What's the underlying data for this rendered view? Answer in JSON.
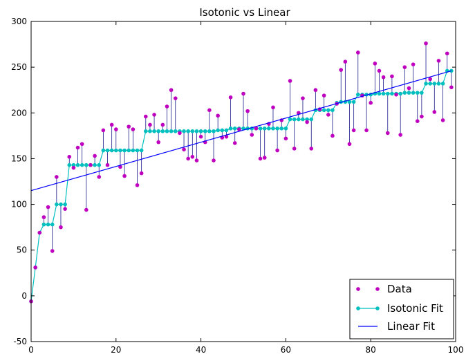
{
  "chart_data": {
    "type": "scatter",
    "title": "Isotonic vs Linear",
    "xlabel": "",
    "ylabel": "",
    "xlim": [
      0,
      100
    ],
    "ylim": [
      -50,
      300
    ],
    "xticks": [
      "0",
      "20",
      "40",
      "60",
      "80",
      "100"
    ],
    "yticks": [
      "-50",
      "0",
      "50",
      "100",
      "150",
      "200",
      "250",
      "300"
    ],
    "grid": false,
    "legend_position": "bottom-right",
    "x": [
      0,
      1,
      2,
      3,
      4,
      5,
      6,
      7,
      8,
      9,
      10,
      11,
      12,
      13,
      14,
      15,
      16,
      17,
      18,
      19,
      20,
      21,
      22,
      23,
      24,
      25,
      26,
      27,
      28,
      29,
      30,
      31,
      32,
      33,
      34,
      35,
      36,
      37,
      38,
      39,
      40,
      41,
      42,
      43,
      44,
      45,
      46,
      47,
      48,
      49,
      50,
      51,
      52,
      53,
      54,
      55,
      56,
      57,
      58,
      59,
      60,
      61,
      62,
      63,
      64,
      65,
      66,
      67,
      68,
      69,
      70,
      71,
      72,
      73,
      74,
      75,
      76,
      77,
      78,
      79,
      80,
      81,
      82,
      83,
      84,
      85,
      86,
      87,
      88,
      89,
      90,
      91,
      92,
      93,
      94,
      95,
      96,
      97,
      98,
      99
    ],
    "series": [
      {
        "name": "Data",
        "color": "#bf00bf",
        "values": [
          -6,
          31,
          69,
          86,
          97,
          49,
          130,
          75,
          95,
          152,
          140,
          162,
          166,
          94,
          143,
          153,
          130,
          181,
          143,
          187,
          182,
          141,
          131,
          185,
          182,
          121,
          134,
          196,
          187,
          198,
          168,
          187,
          207,
          225,
          216,
          178,
          160,
          150,
          152,
          148,
          174,
          168,
          203,
          148,
          197,
          173,
          174,
          217,
          167,
          182,
          221,
          202,
          176,
          183,
          150,
          151,
          188,
          206,
          159,
          192,
          172,
          235,
          161,
          200,
          216,
          190,
          161,
          225,
          204,
          219,
          198,
          175,
          210,
          247,
          256,
          166,
          181,
          266,
          219,
          181,
          211,
          254,
          246,
          239,
          178,
          240,
          220,
          176,
          250,
          227,
          253,
          191,
          196,
          276,
          237,
          201,
          257,
          192,
          265,
          228
        ]
      },
      {
        "name": "Isotonic Fit",
        "color": "#00bfbf",
        "values": [
          -6,
          31,
          69,
          78,
          78,
          78,
          100,
          100,
          100,
          143,
          143,
          143,
          143,
          143,
          143,
          143,
          143,
          159,
          159,
          159,
          159,
          159,
          159,
          159,
          159,
          159,
          159,
          180,
          180,
          180,
          180,
          180,
          180,
          180,
          180,
          180,
          180,
          180,
          180,
          180,
          180,
          180,
          180,
          180,
          181,
          181,
          181,
          183,
          183,
          183,
          183,
          183,
          183,
          183,
          183,
          183,
          183,
          183,
          183,
          183,
          183,
          193,
          193,
          193,
          193,
          193,
          193,
          203,
          203,
          203,
          203,
          203,
          211,
          212,
          212,
          212,
          212,
          220,
          220,
          220,
          220,
          221,
          221,
          221,
          221,
          221,
          221,
          221,
          222,
          222,
          222,
          222,
          222,
          232,
          232,
          232,
          232,
          232,
          246,
          246
        ]
      },
      {
        "name": "Linear Fit",
        "color": "#0000ff",
        "values": [
          115,
          246
        ]
      }
    ]
  }
}
